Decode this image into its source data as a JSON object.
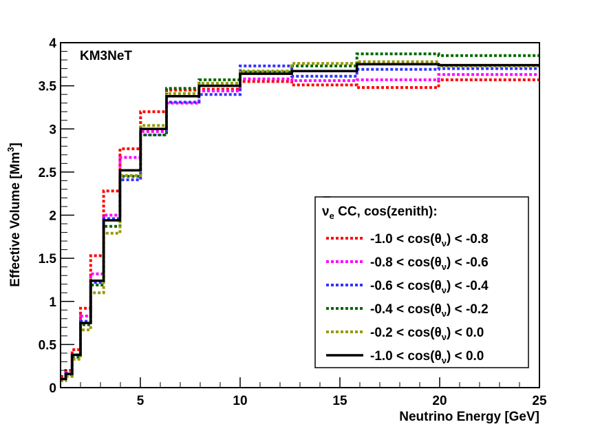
{
  "chart_data": {
    "type": "line",
    "style": "step",
    "title": "KM3NeT",
    "xlabel": "Neutrino Energy [GeV]",
    "ylabel": "Effective Volume [Mm",
    "ylabel_sup": "3",
    "ylabel_end": "]",
    "xlim": [
      1,
      25
    ],
    "ylim": [
      0,
      4
    ],
    "xticks": [
      5,
      10,
      15,
      20,
      25
    ],
    "xtick_labels": [
      "5",
      "10",
      "15",
      "20",
      "25"
    ],
    "yticks": [
      0,
      0.5,
      1,
      1.5,
      2,
      2.5,
      3,
      3.5,
      4
    ],
    "ytick_labels": [
      "0",
      "0.5",
      "1",
      "1.5",
      "2",
      "2.5",
      "3",
      "3.5",
      "4"
    ],
    "bin_edges": [
      1,
      1.26,
      1.58,
      2.0,
      2.51,
      3.16,
      3.98,
      5.01,
      6.31,
      7.94,
      10.0,
      12.59,
      15.85,
      19.95,
      25.12
    ],
    "legend": {
      "title_main": "ν",
      "title_sub": "e",
      "title_rest": " CC, cos(zenith):",
      "position": "right"
    },
    "series": [
      {
        "name": "-1.0 < cos(θν) < -0.8",
        "label_pre": "-1.0 < cos(θ",
        "label_sub": "ν",
        "label_post": ") < -0.8",
        "color": "#ff0000",
        "dashed": true,
        "values": [
          0.13,
          0.2,
          0.44,
          0.92,
          1.53,
          2.28,
          2.77,
          3.2,
          3.45,
          3.46,
          3.55,
          3.51,
          3.48,
          3.57
        ]
      },
      {
        "name": "-0.8 < cos(θν) < -0.6",
        "label_pre": "-0.8 < cos(θ",
        "label_sub": "ν",
        "label_post": ") < -0.6",
        "color": "#ff00ff",
        "dashed": true,
        "values": [
          0.11,
          0.17,
          0.38,
          0.83,
          1.32,
          2.0,
          2.67,
          2.97,
          3.3,
          3.44,
          3.58,
          3.56,
          3.57,
          3.63
        ]
      },
      {
        "name": "-0.6 < cos(θν) < -0.4",
        "label_pre": "-0.6 < cos(θ",
        "label_sub": "ν",
        "label_post": ") < -0.4",
        "color": "#3333ff",
        "dashed": true,
        "values": [
          0.1,
          0.16,
          0.36,
          0.77,
          1.22,
          1.96,
          2.41,
          2.93,
          3.31,
          3.4,
          3.73,
          3.61,
          3.69,
          3.7
        ]
      },
      {
        "name": "-0.4 < cos(θν) < -0.2",
        "label_pre": "-0.4 < cos(θ",
        "label_sub": "ν",
        "label_post": ") < -0.2",
        "color": "#006600",
        "dashed": true,
        "values": [
          0.09,
          0.15,
          0.35,
          0.73,
          1.19,
          1.87,
          2.45,
          2.93,
          3.47,
          3.57,
          3.66,
          3.73,
          3.87,
          3.85
        ]
      },
      {
        "name": "-0.2 < cos(θν) < 0.0",
        "label_pre": "-0.2 < cos(θ",
        "label_sub": "ν",
        "label_post": ") < 0.0",
        "color": "#999900",
        "dashed": true,
        "values": [
          0.08,
          0.13,
          0.33,
          0.67,
          1.1,
          1.79,
          2.46,
          3.04,
          3.41,
          3.53,
          3.67,
          3.76,
          3.78,
          3.73
        ]
      },
      {
        "name": "-1.0 < cos(θν) < 0.0",
        "label_pre": "-1.0 < cos(θ",
        "label_sub": "ν",
        "label_post": ") < 0.0",
        "color": "#000000",
        "dashed": false,
        "values": [
          0.1,
          0.16,
          0.38,
          0.75,
          1.24,
          1.94,
          2.52,
          3.0,
          3.38,
          3.5,
          3.64,
          3.67,
          3.75,
          3.74
        ]
      }
    ]
  }
}
